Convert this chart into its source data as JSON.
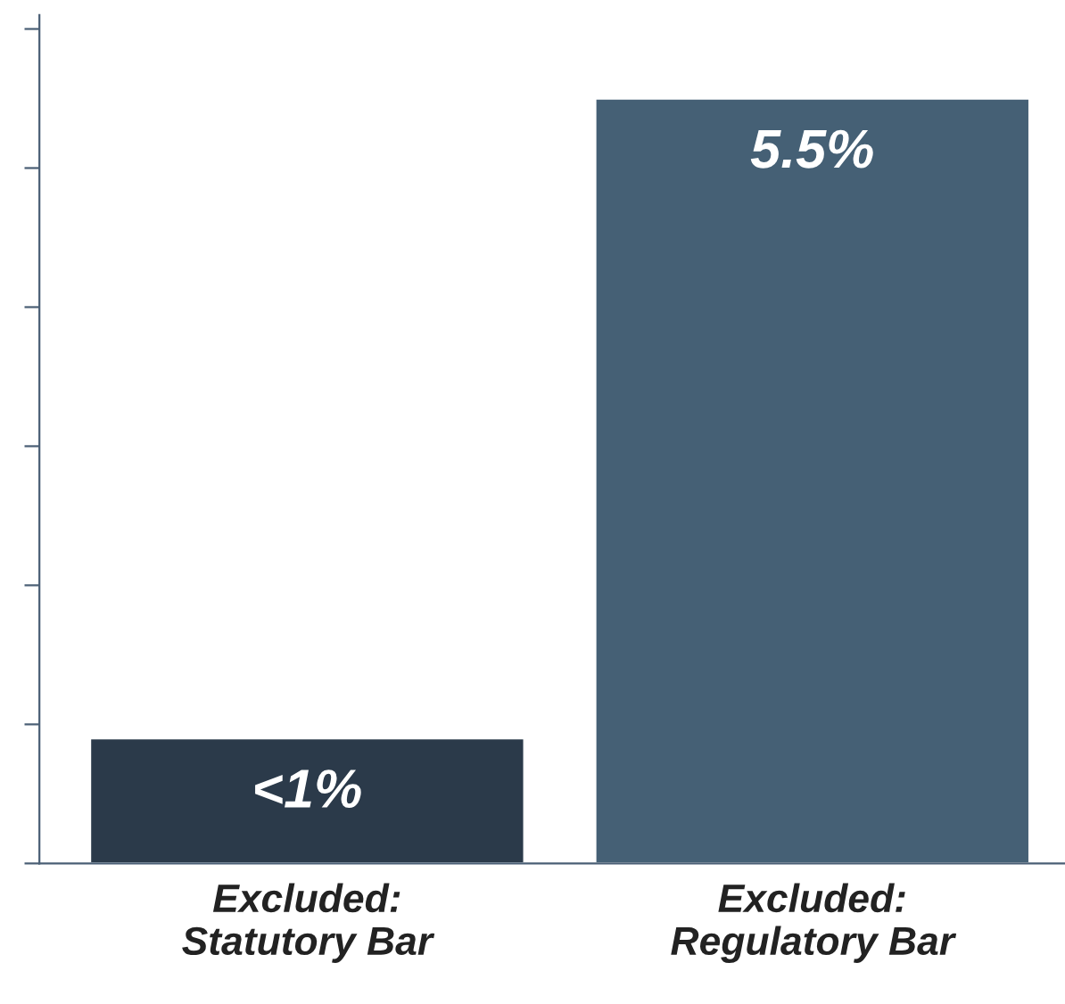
{
  "chart_data": {
    "type": "bar",
    "categories": [
      "Excluded:\nStatutory Bar",
      "Excluded:\nRegulatory Bar"
    ],
    "values": [
      0.9,
      5.5
    ],
    "colors": [
      "#2b3a4a",
      "#456075"
    ],
    "value_labels": [
      "<1%",
      "5.5%"
    ],
    "ylim": [
      0,
      6.1
    ],
    "yticks": [
      {
        "value": 0,
        "label": null
      },
      {
        "value": 1,
        "label": null
      },
      {
        "value": 2,
        "label": null
      },
      {
        "value": 3,
        "label": null
      },
      {
        "value": 4,
        "label": null
      },
      {
        "value": 5,
        "label": null
      },
      {
        "value": 6,
        "label": null
      }
    ],
    "grid": false,
    "legend": false
  }
}
